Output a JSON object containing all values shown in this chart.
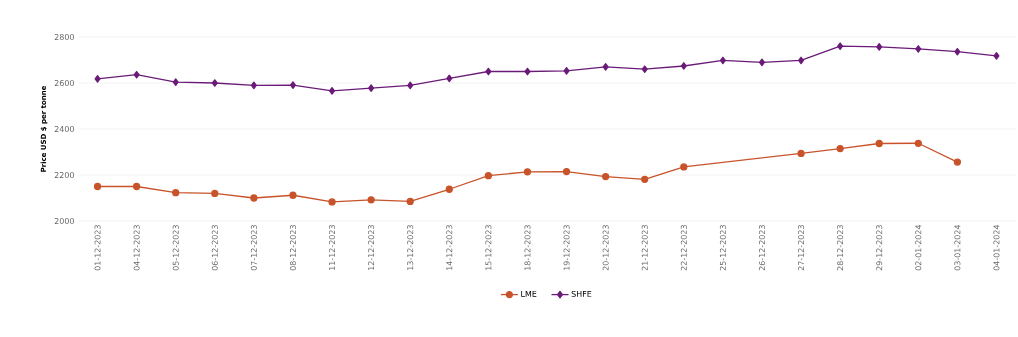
{
  "chart_data": {
    "type": "line",
    "ylabel": "Price USD $ per tonne",
    "categories": [
      "01-12-2023",
      "04-12-2023",
      "05-12-2023",
      "06-12-2023",
      "07-12-2023",
      "08-12-2023",
      "11-12-2023",
      "12-12-2023",
      "13-12-2023",
      "14-12-2023",
      "15-12-2023",
      "18-12-2023",
      "19-12-2023",
      "20-12-2023",
      "21-12-2023",
      "22-12-2023",
      "25-12-2023",
      "26-12-2023",
      "27-12-2023",
      "28-12-2023",
      "29-12-2023",
      "02-01-2024",
      "03-01-2024",
      "04-01-2024"
    ],
    "series": [
      {
        "name": "LME",
        "color": "#c8532a",
        "marker": "circle",
        "values": [
          2150,
          2150,
          2123,
          2120,
          2100,
          2112,
          2083,
          2092,
          2085,
          2138,
          2197,
          2214,
          2215,
          2193,
          2181,
          2235,
          null,
          null,
          2294,
          2315,
          2337,
          2338,
          2256,
          null
        ]
      },
      {
        "name": "SHFE",
        "color": "#6a1b78",
        "marker": "diamond",
        "values": [
          2618,
          2636,
          2604,
          2600,
          2590,
          2591,
          2566,
          2578,
          2590,
          2620,
          2650,
          2650,
          2653,
          2670,
          2660,
          2674,
          2698,
          2690,
          2698,
          2760,
          2757,
          2748,
          2736,
          2718
        ]
      }
    ],
    "ylim": [
      2000,
      2800
    ],
    "yticks": [
      2000,
      2200,
      2400,
      2600,
      2800
    ],
    "grid": "y",
    "legend": "bottom"
  }
}
